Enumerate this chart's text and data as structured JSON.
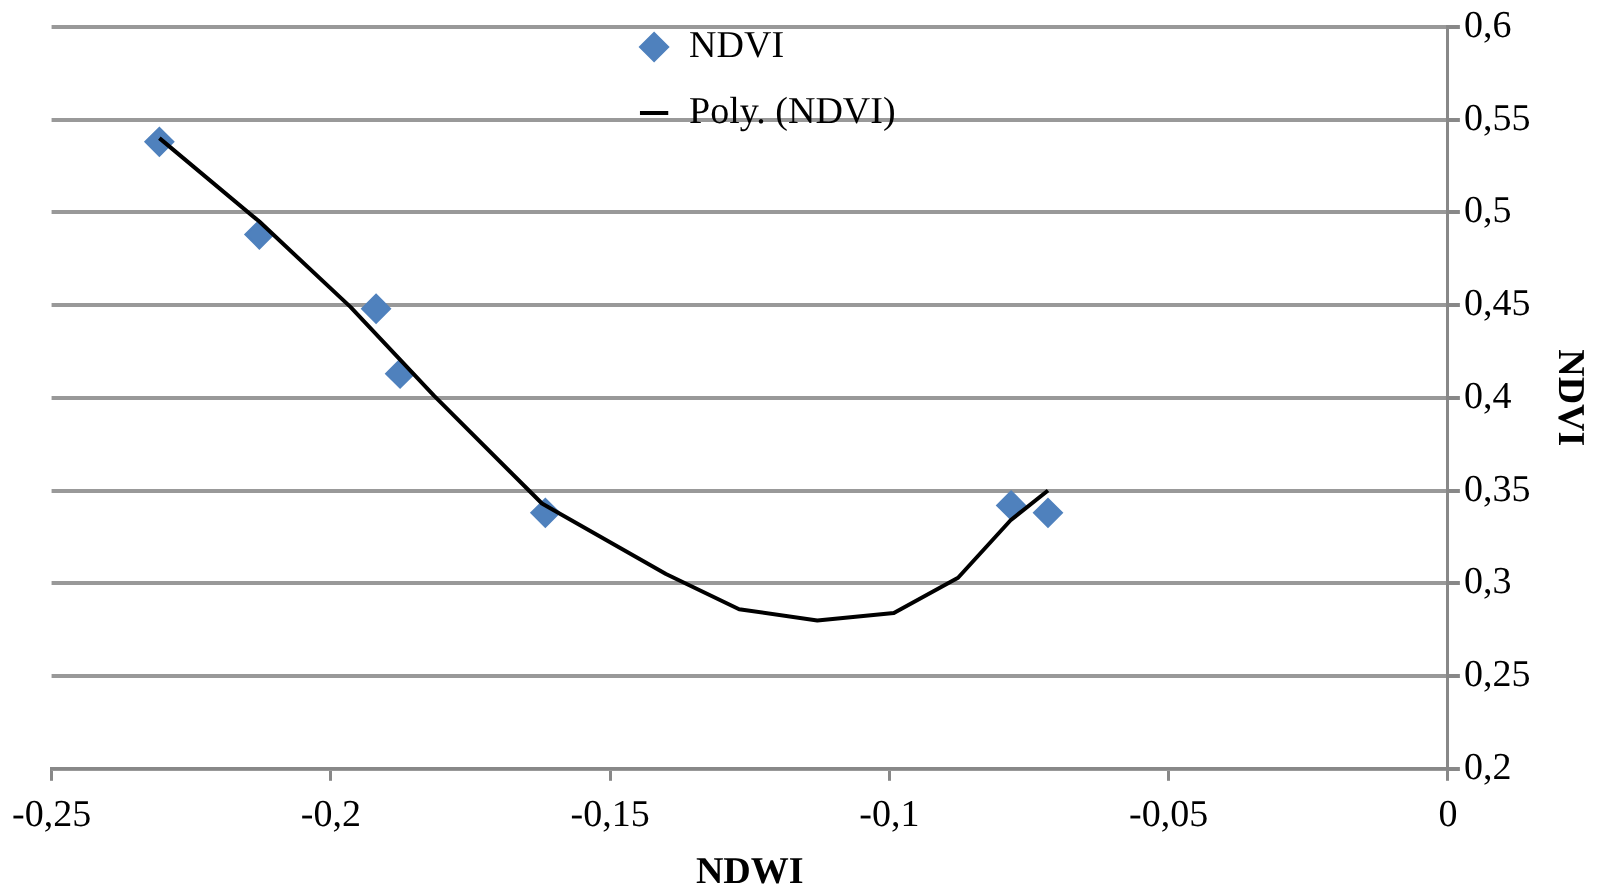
{
  "chart_data": {
    "type": "scatter",
    "xlabel": "NDWI",
    "ylabel": "NDVI",
    "series": [
      {
        "name": "NDVI",
        "marker": "diamond",
        "color": "#4f81bd",
        "x": [
          -0.2307,
          -0.2128,
          -0.1919,
          -0.1876,
          -0.1616,
          -0.0782,
          -0.0716
        ],
        "values": [
          0.538,
          0.488,
          0.448,
          0.413,
          0.338,
          0.342,
          0.338
        ]
      },
      {
        "name": "Poly. (NDVI)",
        "type": "line",
        "marker": "none",
        "color": "#000000",
        "x": [
          -0.2307,
          -0.2128,
          -0.1965,
          -0.1815,
          -0.1622,
          -0.14,
          -0.1269,
          -0.1129,
          -0.0992,
          -0.0877,
          -0.0783,
          -0.0716
        ],
        "values": [
          0.54,
          0.495,
          0.449,
          0.401,
          0.343,
          0.305,
          0.286,
          0.28,
          0.284,
          0.303,
          0.334,
          0.35
        ]
      }
    ],
    "xlim": [
      -0.25,
      0
    ],
    "xticks": [
      {
        "value": -0.25,
        "label": "-0,25"
      },
      {
        "value": -0.2,
        "label": "-0,2"
      },
      {
        "value": -0.15,
        "label": "-0,15"
      },
      {
        "value": -0.1,
        "label": "-0,1"
      },
      {
        "value": -0.05,
        "label": "-0,05"
      },
      0
    ],
    "ylim": [
      0.2,
      0.6
    ],
    "yticks": [
      {
        "value": 0.2,
        "label": "0,2"
      },
      {
        "value": 0.25,
        "label": "0,25"
      },
      {
        "value": 0.3,
        "label": "0,3"
      },
      {
        "value": 0.35,
        "label": "0,35"
      },
      {
        "value": 0.4,
        "label": "0,4"
      },
      {
        "value": 0.45,
        "label": "0,45"
      },
      {
        "value": 0.5,
        "label": "0,5"
      },
      {
        "value": 0.55,
        "label": "0,55"
      },
      {
        "value": 0.6,
        "label": "0,6"
      }
    ],
    "grid": "y",
    "legend": "top"
  }
}
